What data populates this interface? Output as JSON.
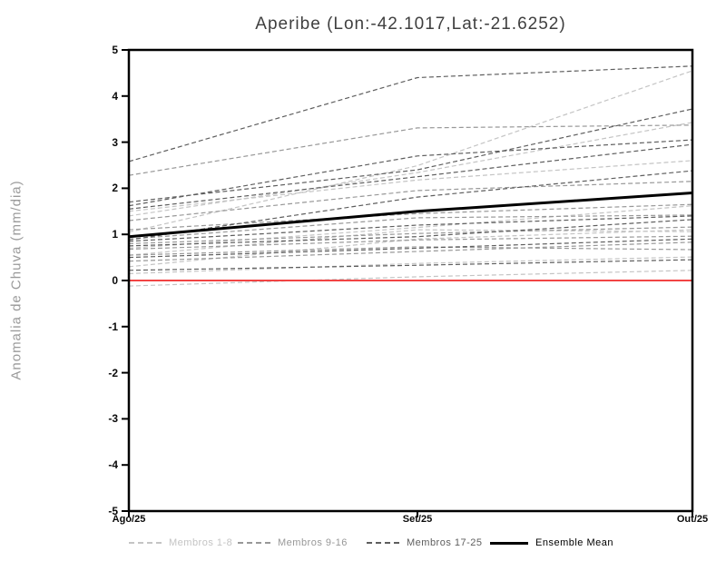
{
  "title": "Aperibe (Lon:-42.1017,Lat:-21.6252)",
  "y_axis_title": "Anomalia de Chuva (mm/dia)",
  "y_tick_labels": [
    "5",
    "4",
    "3",
    "2",
    "1",
    "0",
    "-1",
    "-2",
    "-3",
    "-4",
    "-5"
  ],
  "x_tick_labels": [
    "Ago/25",
    "Set/25",
    "Out/25"
  ],
  "colors": {
    "frame": "#000000",
    "zero_line": "#f24444",
    "members_1_8": "#c4c4c4",
    "members_9_16": "#989898",
    "members_17_25": "#5e5e5e",
    "ensemble_mean": "#000000",
    "title_text": "#3f3f3f",
    "axis_label_text": "#9a9a9a"
  },
  "legend": [
    {
      "label": "Membros 1-8",
      "color": "#c4c4c4",
      "style": "dashed"
    },
    {
      "label": "Membros 9-16",
      "color": "#989898",
      "style": "dashed"
    },
    {
      "label": "Membros 17-25",
      "color": "#5e5e5e",
      "style": "dashed"
    },
    {
      "label": "Ensemble Mean",
      "color": "#000000",
      "style": "solid"
    }
  ],
  "chart_data": {
    "type": "line",
    "title": "Aperibe (Lon:-42.1017,Lat:-21.6252)",
    "ylabel": "Anomalia de Chuva (mm/dia)",
    "x": [
      "Ago/25",
      "Set/25",
      "Out/25"
    ],
    "ylim": [
      -5,
      5
    ],
    "y_ticks": [
      5,
      4,
      3,
      2,
      1,
      0,
      -1,
      -2,
      -3,
      -4,
      -5
    ],
    "grid": false,
    "zero_line_value": 0,
    "legend_position": "bottom",
    "groups": [
      {
        "name": "Membros 1-8",
        "color": "#c4c4c4",
        "members": [
          [
            -0.12,
            0.08,
            0.22
          ],
          [
            0.15,
            0.37,
            0.51
          ],
          [
            1.5,
            2.18,
            2.6
          ],
          [
            1.05,
            2.49,
            4.55
          ],
          [
            1.4,
            2.34,
            3.43
          ],
          [
            0.7,
            1.15,
            1.62
          ],
          [
            0.55,
            1.1,
            1.06
          ],
          [
            0.3,
            0.9,
            1.1
          ]
        ]
      },
      {
        "name": "Membros 9-16",
        "color": "#989898",
        "members": [
          [
            2.28,
            3.31,
            3.37
          ],
          [
            1.3,
            1.95,
            2.15
          ],
          [
            1.1,
            1.45,
            1.65
          ],
          [
            0.9,
            1.36,
            1.42
          ],
          [
            0.8,
            1.02,
            1.16
          ],
          [
            0.68,
            0.88,
            0.96
          ],
          [
            0.55,
            0.73,
            0.67
          ],
          [
            0.42,
            0.63,
            0.83
          ]
        ]
      },
      {
        "name": "Membros 17-25",
        "color": "#5e5e5e",
        "members": [
          [
            2.58,
            4.4,
            4.65
          ],
          [
            1.7,
            2.4,
            3.72
          ],
          [
            1.62,
            2.7,
            3.05
          ],
          [
            1.55,
            2.25,
            2.95
          ],
          [
            0.88,
            1.81,
            2.38
          ],
          [
            0.85,
            1.2,
            1.4
          ],
          [
            0.75,
            0.95,
            1.32
          ],
          [
            0.5,
            0.7,
            0.9
          ],
          [
            0.22,
            0.33,
            0.45
          ]
        ]
      }
    ],
    "ensemble_mean": [
      0.95,
      1.5,
      1.9
    ]
  }
}
